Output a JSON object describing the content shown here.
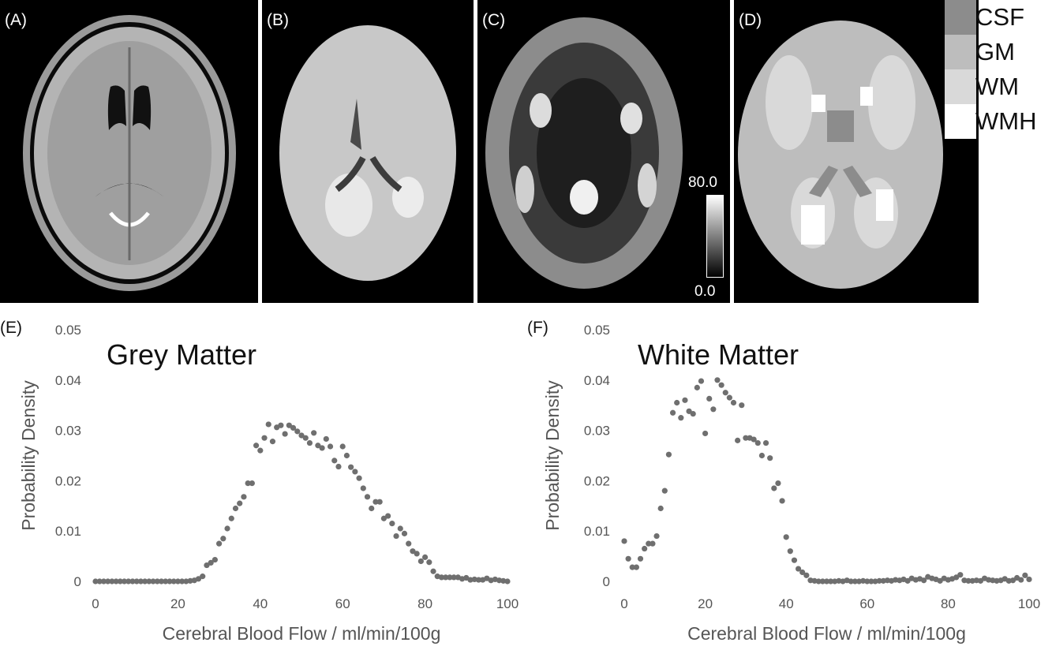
{
  "panels": {
    "a_label": "(A)",
    "b_label": "(B)",
    "c_label": "(C)",
    "d_label": "(D)",
    "colorbar": {
      "max_label": "80.0",
      "min_label": "0.0"
    }
  },
  "legend": {
    "items": [
      {
        "label": "CSF",
        "color": "#8c8c8c"
      },
      {
        "label": "GM",
        "color": "#bdbdbd"
      },
      {
        "label": "WM",
        "color": "#d9d9d9"
      },
      {
        "label": "WMH",
        "color": "#ffffff"
      }
    ]
  },
  "chart_data": [
    {
      "type": "scatter",
      "panel_label": "(E)",
      "title": "Grey Matter",
      "xlabel": "Cerebral Blood Flow / ml/min/100g",
      "ylabel": "Probability Density",
      "xlim": [
        0,
        100
      ],
      "ylim": [
        0,
        0.05
      ],
      "xticks": [
        "0",
        "20",
        "40",
        "60",
        "80",
        "100"
      ],
      "yticks": [
        "0",
        "0.01",
        "0.02",
        "0.03",
        "0.04",
        "0.05"
      ],
      "grid": false,
      "color": "#6f6f6f",
      "points": [
        [
          0,
          0
        ],
        [
          1,
          0
        ],
        [
          2,
          0
        ],
        [
          3,
          0
        ],
        [
          4,
          0
        ],
        [
          5,
          0
        ],
        [
          6,
          0
        ],
        [
          7,
          0
        ],
        [
          8,
          0
        ],
        [
          9,
          0
        ],
        [
          10,
          0
        ],
        [
          11,
          0
        ],
        [
          12,
          0
        ],
        [
          13,
          0
        ],
        [
          14,
          0
        ],
        [
          15,
          0
        ],
        [
          16,
          0
        ],
        [
          17,
          0
        ],
        [
          18,
          0
        ],
        [
          19,
          0
        ],
        [
          20,
          0
        ],
        [
          21,
          0
        ],
        [
          22,
          0
        ],
        [
          23,
          0.0001
        ],
        [
          24,
          0.0002
        ],
        [
          25,
          0.0005
        ],
        [
          26,
          0.001
        ],
        [
          27,
          0.0032
        ],
        [
          28,
          0.0037
        ],
        [
          29,
          0.0043
        ],
        [
          30,
          0.0075
        ],
        [
          31,
          0.0085
        ],
        [
          32,
          0.0105
        ],
        [
          33,
          0.0125
        ],
        [
          34,
          0.0145
        ],
        [
          35,
          0.0155
        ],
        [
          36,
          0.0168
        ],
        [
          37,
          0.0195
        ],
        [
          38,
          0.0195
        ],
        [
          39,
          0.027
        ],
        [
          40,
          0.026
        ],
        [
          41,
          0.0285
        ],
        [
          42,
          0.0312
        ],
        [
          43,
          0.0278
        ],
        [
          44,
          0.0306
        ],
        [
          45,
          0.031
        ],
        [
          46,
          0.0293
        ],
        [
          47,
          0.031
        ],
        [
          48,
          0.0305
        ],
        [
          49,
          0.0298
        ],
        [
          50,
          0.029
        ],
        [
          51,
          0.0285
        ],
        [
          52,
          0.0275
        ],
        [
          53,
          0.0295
        ],
        [
          54,
          0.027
        ],
        [
          55,
          0.0265
        ],
        [
          56,
          0.0283
        ],
        [
          57,
          0.0268
        ],
        [
          58,
          0.024
        ],
        [
          59,
          0.0228
        ],
        [
          60,
          0.0268
        ],
        [
          61,
          0.025
        ],
        [
          62,
          0.0227
        ],
        [
          63,
          0.0218
        ],
        [
          64,
          0.0205
        ],
        [
          65,
          0.0185
        ],
        [
          66,
          0.0168
        ],
        [
          67,
          0.0145
        ],
        [
          68,
          0.0158
        ],
        [
          69,
          0.0158
        ],
        [
          70,
          0.0125
        ],
        [
          71,
          0.013
        ],
        [
          72,
          0.0115
        ],
        [
          73,
          0.009
        ],
        [
          74,
          0.0105
        ],
        [
          75,
          0.0095
        ],
        [
          76,
          0.0075
        ],
        [
          77,
          0.006
        ],
        [
          78,
          0.0055
        ],
        [
          79,
          0.004
        ],
        [
          80,
          0.0048
        ],
        [
          81,
          0.0038
        ],
        [
          82,
          0.002
        ],
        [
          83,
          0.001
        ],
        [
          84,
          0.0008
        ],
        [
          85,
          0.0008
        ],
        [
          86,
          0.0008
        ],
        [
          87,
          0.0008
        ],
        [
          88,
          0.0008
        ],
        [
          89,
          0.0005
        ],
        [
          90,
          0.0007
        ],
        [
          91,
          0.0003
        ],
        [
          92,
          0.0004
        ],
        [
          93,
          0.0003
        ],
        [
          94,
          0.0003
        ],
        [
          95,
          0.0006
        ],
        [
          96,
          0.0002
        ],
        [
          97,
          0.0004
        ],
        [
          98,
          0.0002
        ],
        [
          99,
          0.0001
        ],
        [
          100,
          0
        ]
      ]
    },
    {
      "type": "scatter",
      "panel_label": "(F)",
      "title": "White Matter",
      "xlabel": "Cerebral Blood Flow / ml/min/100g",
      "ylabel": "Probability Density",
      "xlim": [
        0,
        100
      ],
      "ylim": [
        0,
        0.05
      ],
      "xticks": [
        "0",
        "20",
        "40",
        "60",
        "80",
        "100"
      ],
      "yticks": [
        "0",
        "0.01",
        "0.02",
        "0.03",
        "0.04",
        "0.05"
      ],
      "grid": false,
      "color": "#6f6f6f",
      "points": [
        [
          0,
          0.008
        ],
        [
          1,
          0.0045
        ],
        [
          2,
          0.0028
        ],
        [
          3,
          0.0028
        ],
        [
          4,
          0.0045
        ],
        [
          5,
          0.0065
        ],
        [
          6,
          0.0075
        ],
        [
          7,
          0.0075
        ],
        [
          8,
          0.009
        ],
        [
          9,
          0.0145
        ],
        [
          10,
          0.018
        ],
        [
          11,
          0.0252
        ],
        [
          12,
          0.0335
        ],
        [
          13,
          0.0355
        ],
        [
          14,
          0.0325
        ],
        [
          15,
          0.036
        ],
        [
          16,
          0.0338
        ],
        [
          17,
          0.0333
        ],
        [
          18,
          0.0385
        ],
        [
          19,
          0.0398
        ],
        [
          20,
          0.0294
        ],
        [
          21,
          0.0363
        ],
        [
          22,
          0.0342
        ],
        [
          23,
          0.04
        ],
        [
          24,
          0.039
        ],
        [
          25,
          0.0375
        ],
        [
          26,
          0.0365
        ],
        [
          27,
          0.0355
        ],
        [
          28,
          0.028
        ],
        [
          29,
          0.035
        ],
        [
          30,
          0.0285
        ],
        [
          31,
          0.0285
        ],
        [
          32,
          0.0282
        ],
        [
          33,
          0.0275
        ],
        [
          34,
          0.025
        ],
        [
          35,
          0.0275
        ],
        [
          36,
          0.0245
        ],
        [
          37,
          0.0185
        ],
        [
          38,
          0.0195
        ],
        [
          39,
          0.016
        ],
        [
          40,
          0.0088
        ],
        [
          41,
          0.006
        ],
        [
          42,
          0.0042
        ],
        [
          43,
          0.0025
        ],
        [
          44,
          0.0018
        ],
        [
          45,
          0.0012
        ],
        [
          46,
          0.0002
        ],
        [
          47,
          0.0001
        ],
        [
          48,
          0
        ],
        [
          49,
          0
        ],
        [
          50,
          0
        ],
        [
          51,
          0
        ],
        [
          52,
          0
        ],
        [
          53,
          0.0001
        ],
        [
          54,
          0
        ],
        [
          55,
          0.0002
        ],
        [
          56,
          0
        ],
        [
          57,
          0
        ],
        [
          58,
          0
        ],
        [
          59,
          0.0001
        ],
        [
          60,
          0
        ],
        [
          61,
          0
        ],
        [
          62,
          0
        ],
        [
          63,
          0.0001
        ],
        [
          64,
          0.0001
        ],
        [
          65,
          0.0002
        ],
        [
          66,
          0.0001
        ],
        [
          67,
          0.0003
        ],
        [
          68,
          0.0002
        ],
        [
          69,
          0.0004
        ],
        [
          70,
          0.0001
        ],
        [
          71,
          0.0006
        ],
        [
          72,
          0.0003
        ],
        [
          73,
          0.0005
        ],
        [
          74,
          0.0002
        ],
        [
          75,
          0.0009
        ],
        [
          76,
          0.0006
        ],
        [
          77,
          0.0004
        ],
        [
          78,
          0.0001
        ],
        [
          79,
          0.0006
        ],
        [
          80,
          0.0003
        ],
        [
          81,
          0.0005
        ],
        [
          82,
          0.0008
        ],
        [
          83,
          0.0013
        ],
        [
          84,
          0.0002
        ],
        [
          85,
          0.0001
        ],
        [
          86,
          0.0001
        ],
        [
          87,
          0.0002
        ],
        [
          88,
          0.0001
        ],
        [
          89,
          0.0006
        ],
        [
          90,
          0.0003
        ],
        [
          91,
          0.0002
        ],
        [
          92,
          0.0001
        ],
        [
          93,
          0.0002
        ],
        [
          94,
          0.0005
        ],
        [
          95,
          0.0001
        ],
        [
          96,
          0.0002
        ],
        [
          97,
          0.0007
        ],
        [
          98,
          0.0003
        ],
        [
          99,
          0.0012
        ],
        [
          100,
          0.0004
        ]
      ]
    }
  ]
}
